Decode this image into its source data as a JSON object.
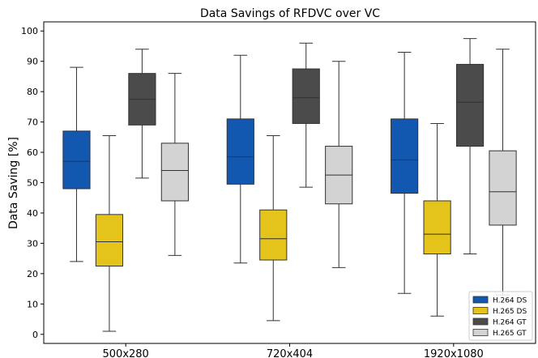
{
  "chart_data": {
    "type": "boxplot",
    "title": "Data Savings of RFDVC over VC",
    "xlabel": "",
    "ylabel": "Data Saving [%]",
    "ylim": [
      -3,
      103
    ],
    "yticks": [
      0,
      10,
      20,
      30,
      40,
      50,
      60,
      70,
      80,
      90,
      100
    ],
    "categories": [
      "500x280",
      "720x404",
      "1920x1080"
    ],
    "legend_position": "bottom-right",
    "grid": false,
    "series": [
      {
        "name": "H.264 DS",
        "color": "#1358b0",
        "boxes": [
          {
            "whisker_low": 24,
            "q1": 48,
            "median": 57,
            "q3": 67,
            "whisker_high": 88
          },
          {
            "whisker_low": 23.5,
            "q1": 49.5,
            "median": 58.5,
            "q3": 71,
            "whisker_high": 92
          },
          {
            "whisker_low": 13.5,
            "q1": 46.5,
            "median": 57.5,
            "q3": 71,
            "whisker_high": 93
          }
        ]
      },
      {
        "name": "H.265 DS",
        "color": "#e4c31a",
        "boxes": [
          {
            "whisker_low": 1,
            "q1": 22.5,
            "median": 30.5,
            "q3": 39.5,
            "whisker_high": 65.5
          },
          {
            "whisker_low": 4.5,
            "q1": 24.5,
            "median": 31.5,
            "q3": 41,
            "whisker_high": 65.5
          },
          {
            "whisker_low": 6,
            "q1": 26.5,
            "median": 33,
            "q3": 44,
            "whisker_high": 69.5
          }
        ]
      },
      {
        "name": "H.264 GT",
        "color": "#4b4b4b",
        "boxes": [
          {
            "whisker_low": 51.5,
            "q1": 69,
            "median": 77.5,
            "q3": 86,
            "whisker_high": 94
          },
          {
            "whisker_low": 48.5,
            "q1": 69.5,
            "median": 78,
            "q3": 87.5,
            "whisker_high": 96
          },
          {
            "whisker_low": 26.5,
            "q1": 62,
            "median": 76.5,
            "q3": 89,
            "whisker_high": 97.5
          }
        ]
      },
      {
        "name": "H.265 GT",
        "color": "#d3d3d3",
        "boxes": [
          {
            "whisker_low": 26,
            "q1": 44,
            "median": 54,
            "q3": 63,
            "whisker_high": 86
          },
          {
            "whisker_low": 22,
            "q1": 43,
            "median": 52.5,
            "q3": 62,
            "whisker_high": 90
          },
          {
            "whisker_low": 13,
            "q1": 36,
            "median": 47,
            "q3": 60.5,
            "whisker_high": 94
          }
        ]
      }
    ]
  }
}
